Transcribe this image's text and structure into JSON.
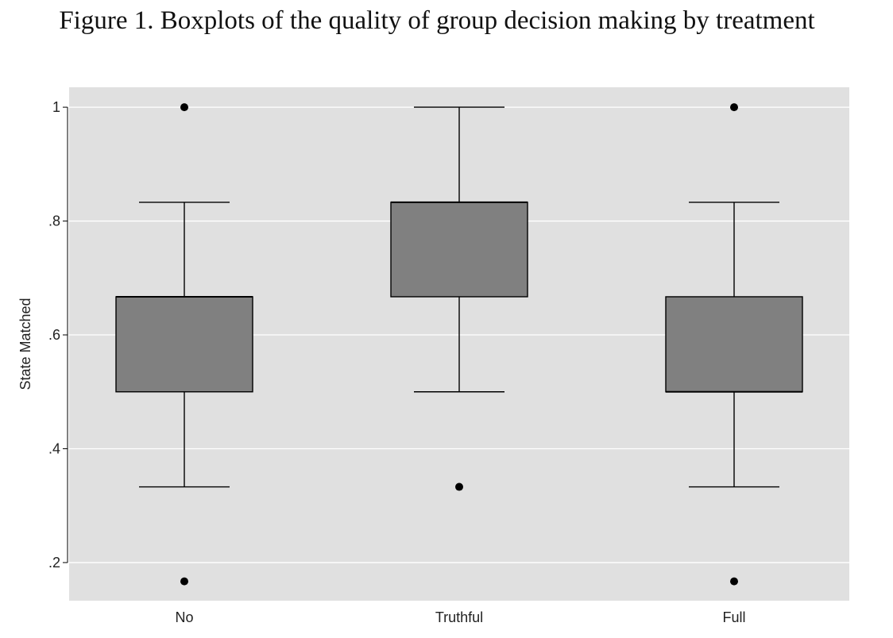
{
  "figure": {
    "title": "Figure 1. Boxplots of the quality of group decision making by treatment"
  },
  "chart_data": {
    "type": "box",
    "title": "Figure 1. Boxplots of the quality of group decision making by treatment",
    "xlabel": "",
    "ylabel": "State Matched",
    "ylim": [
      0.133,
      1.035
    ],
    "yticks": [
      {
        "value": 0.2,
        "label": ".2"
      },
      {
        "value": 0.4,
        "label": ".4"
      },
      {
        "value": 0.6,
        "label": ".6"
      },
      {
        "value": 0.8,
        "label": ".8"
      },
      {
        "value": 1.0,
        "label": "1"
      }
    ],
    "grid": true,
    "categories": [
      "No",
      "Truthful",
      "Full"
    ],
    "boxes": [
      {
        "category": "No",
        "whisker_low": 0.333,
        "q1": 0.5,
        "median": 0.667,
        "q3": 0.667,
        "whisker_high": 0.833,
        "outliers": [
          0.167,
          1.0
        ]
      },
      {
        "category": "Truthful",
        "whisker_low": 0.5,
        "q1": 0.667,
        "median": 0.833,
        "q3": 0.833,
        "whisker_high": 1.0,
        "outliers": [
          0.333
        ]
      },
      {
        "category": "Full",
        "whisker_low": 0.333,
        "q1": 0.5,
        "median": 0.5,
        "q3": 0.667,
        "whisker_high": 0.833,
        "outliers": [
          0.167,
          1.0
        ]
      }
    ],
    "colors": {
      "plot_background": "#e0e0e0",
      "gridline": "#ffffff",
      "box_fill": "#808080",
      "line": "#000000"
    }
  }
}
